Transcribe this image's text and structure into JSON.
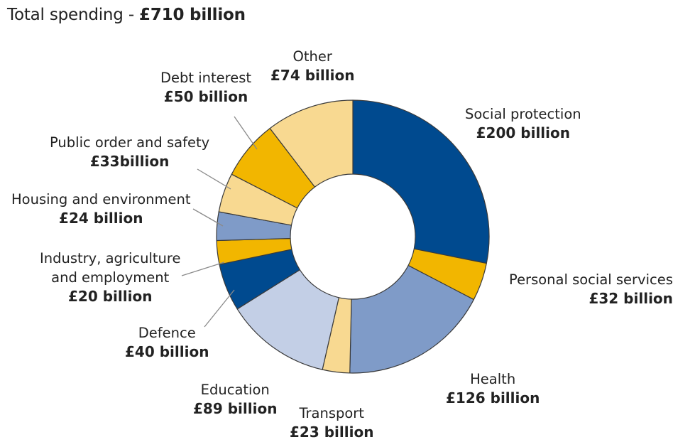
{
  "header": {
    "prefix": "Total spending - ",
    "amount": "£710 billion"
  },
  "chart_data": {
    "type": "pie",
    "style": "donut",
    "unit": "£ billion",
    "total": 710,
    "direction": "clockwise from top",
    "slices": [
      {
        "name": "Social protection",
        "value": 200,
        "value_label": "£200 billion",
        "color": "#004a8f"
      },
      {
        "name": "Personal social services",
        "value": 32,
        "value_label": "£32 billion",
        "color": "#f2b600"
      },
      {
        "name": "Health",
        "value": 126,
        "value_label": "£126 billion",
        "color": "#7f9bc8"
      },
      {
        "name": "Transport",
        "value": 23,
        "value_label": "£23 billion",
        "color": "#f8d991"
      },
      {
        "name": "Education",
        "value": 89,
        "value_label": "£89 billion",
        "color": "#c3cfe6"
      },
      {
        "name": "Defence",
        "value": 40,
        "value_label": "£40 billion",
        "color": "#004a8f"
      },
      {
        "name": "Industry, agriculture\nand employment",
        "value": 20,
        "value_label": "£20 billion",
        "color": "#f2b600"
      },
      {
        "name": "Housing and environment",
        "value": 24,
        "value_label": "£24 billion",
        "color": "#7f9bc8"
      },
      {
        "name": "Public order and safety",
        "value": 33,
        "value_label": "£33billion",
        "color": "#f8d991"
      },
      {
        "name": "Debt interest",
        "value": 50,
        "value_label": "£50 billion",
        "color": "#f2b600"
      },
      {
        "name": "Other",
        "value": 74,
        "value_label": "£74 billion",
        "color": "#f8d991"
      }
    ]
  }
}
